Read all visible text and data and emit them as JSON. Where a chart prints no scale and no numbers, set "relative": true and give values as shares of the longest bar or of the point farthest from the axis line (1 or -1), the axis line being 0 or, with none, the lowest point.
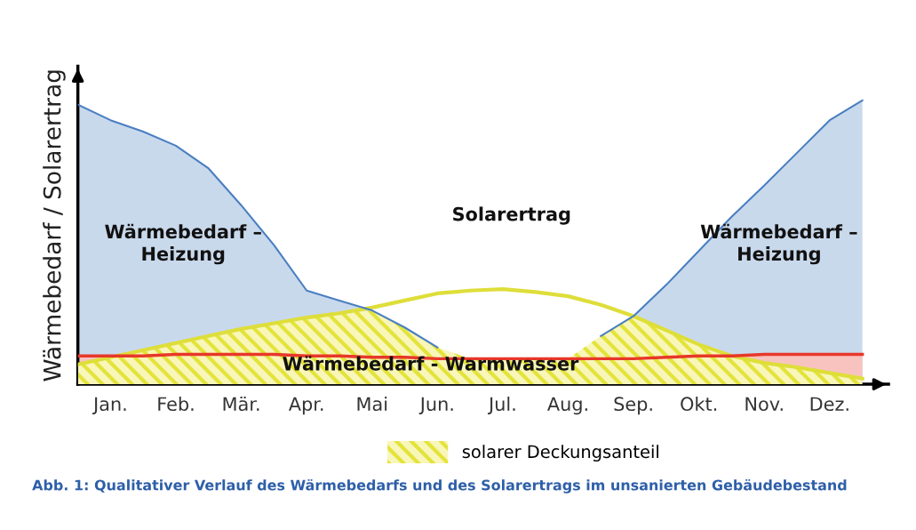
{
  "chart_data": {
    "type": "area",
    "relative": true,
    "ylabel": "Wärmebedarf / Solarertrag",
    "categories": [
      null,
      "Jan.",
      null,
      "Feb.",
      null,
      "Mär.",
      null,
      "Apr.",
      null,
      "Mai",
      null,
      "Jun.",
      null,
      "Jul.",
      null,
      "Aug.",
      null,
      "Sep.",
      null,
      "Okt.",
      null,
      "Nov.",
      null,
      "Dez.",
      null
    ],
    "series": [
      {
        "color": "#4a7fc1",
        "values": [
          0.985,
          0.93,
          0.89,
          0.84,
          0.76,
          0.63,
          0.49,
          0.33,
          0.295,
          0.26,
          0.2,
          0.13,
          null,
          null,
          null,
          null,
          0.17,
          0.24,
          0.35,
          0.47,
          0.59,
          0.7,
          0.815,
          0.93,
          1.0
        ]
      },
      {
        "type": "area",
        "color": "#e8372a",
        "values": [
          0.1,
          0.1,
          0.1,
          0.105,
          0.105,
          0.105,
          0.105,
          0.1,
          0.1,
          0.095,
          0.095,
          0.09,
          0.09,
          0.09,
          0.09,
          0.09,
          0.09,
          0.09,
          0.095,
          0.1,
          0.1,
          0.105,
          0.105,
          0.105,
          0.105
        ]
      },
      {
        "type": "area",
        "name": "solarer Deckungsanteil",
        "color": "#e3e33a",
        "values": [
          0.07,
          0.095,
          0.12,
          0.145,
          0.17,
          0.195,
          0.215,
          0.235,
          0.25,
          0.26,
          0.2,
          0.13,
          0.09,
          0.09,
          0.09,
          0.09,
          0.17,
          0.24,
          0.19,
          0.14,
          0.1,
          0.075,
          0.06,
          0.04,
          0.02
        ]
      },
      {
        "type": "line",
        "color": "#dede3a",
        "values": [
          0.07,
          0.095,
          0.12,
          0.145,
          0.17,
          0.195,
          0.215,
          0.235,
          0.25,
          0.27,
          0.295,
          0.32,
          0.33,
          0.335,
          0.325,
          0.31,
          0.28,
          0.24,
          0.19,
          0.14,
          0.1,
          0.075,
          0.06,
          0.04,
          0.02
        ]
      }
    ],
    "annotations": [
      "Wärmebedarf –\nHeizung",
      "Wärmebedarf –\nHeizung",
      "Solarertrag",
      "Wärmebedarf - Warmwasser",
      "Abb. 1: Qualitativer Verlauf des Wärmebedarfs und des Solarertrags im unsanierten Gebäudebestand"
    ],
    "legend": "bottom",
    "grid": false
  }
}
